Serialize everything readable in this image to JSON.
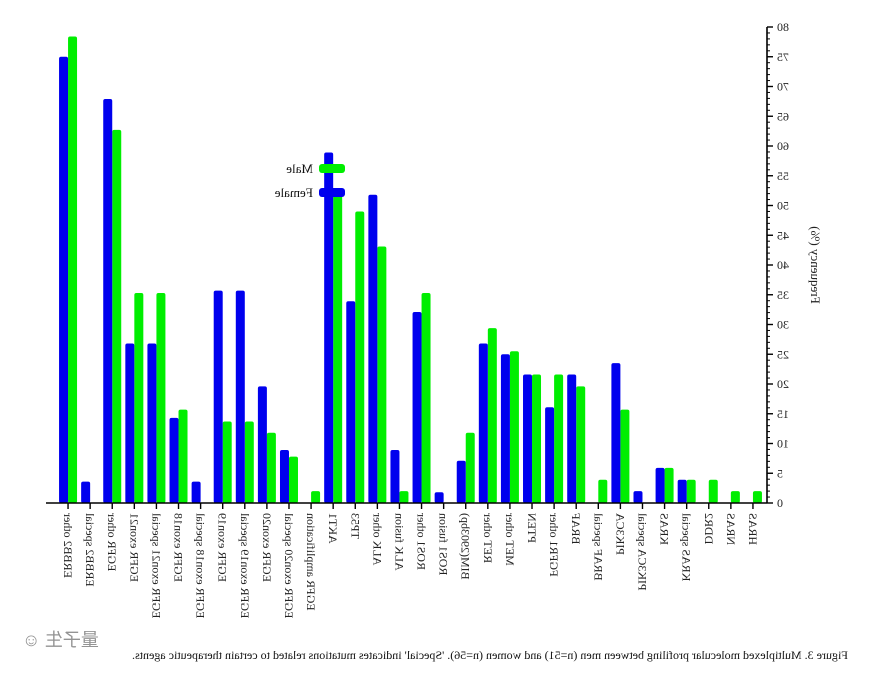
{
  "figure": {
    "caption": "Figure 3. Multiplexed molecular profiling between men (n=51) and women (n=56). 'Special' indicates mutations related to certain therapeutic agents.",
    "watermark": "量子生 ☺",
    "mirrored": true
  },
  "chart_data": {
    "type": "bar",
    "title": "",
    "xlabel": "",
    "ylabel": "Frequency (%)",
    "ylim": [
      0,
      80
    ],
    "yticks": [
      0,
      5,
      10,
      15,
      20,
      25,
      30,
      35,
      40,
      45,
      50,
      55,
      60,
      65,
      70,
      75,
      80
    ],
    "grid": false,
    "legend_position": "top-right",
    "categories": [
      "HRAS",
      "NRAS",
      "DDR2",
      "KRAS special",
      "KRAS",
      "PIK3CA special",
      "PIK3CA",
      "BRAF special",
      "BRAF",
      "FGFR1 other",
      "PTEN",
      "MET other",
      "RET other",
      "BIM(2903bp)",
      "ROS1 fusion",
      "ROS1 other",
      "ALK fusion",
      "ALK other",
      "TP53",
      "AKT1",
      "EGFR amplification",
      "EGFR exon20 special",
      "EGFR exon20",
      "EGFR exon19 special",
      "EGFR exon19",
      "EGFR exon18 special",
      "EGFR exon18",
      "EGFR exon21 special",
      "EGFR exon21",
      "EGFR other",
      "ERBB2 special",
      "ERBB2 other"
    ],
    "series": [
      {
        "name": "Male",
        "color": "#00ee00",
        "values": [
          2.0,
          2.0,
          3.9,
          3.9,
          5.9,
          0,
          15.7,
          3.9,
          19.6,
          21.6,
          21.6,
          25.5,
          29.4,
          11.8,
          0,
          35.3,
          2.0,
          43.1,
          49.0,
          52.9,
          2.0,
          7.8,
          11.8,
          13.7,
          13.7,
          0,
          15.7,
          35.3,
          35.3,
          62.7,
          0,
          78.4
        ]
      },
      {
        "name": "Female",
        "color": "#0000ee",
        "values": [
          0,
          0,
          0,
          3.9,
          5.9,
          2.0,
          23.5,
          0,
          21.6,
          16.1,
          21.6,
          25.0,
          26.8,
          7.1,
          1.8,
          32.1,
          8.9,
          51.8,
          33.9,
          58.9,
          0,
          8.9,
          19.6,
          35.7,
          35.7,
          3.6,
          14.3,
          26.8,
          26.8,
          67.9,
          3.6,
          75.0
        ]
      }
    ]
  }
}
